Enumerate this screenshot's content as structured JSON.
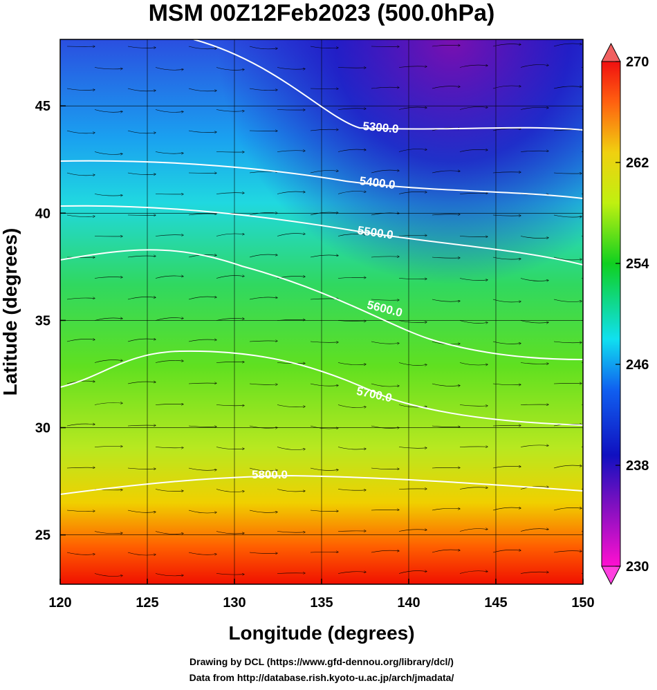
{
  "chart_data": {
    "type": "map",
    "title": "MSM 00Z12Feb2023 (500.0hPa)",
    "x_label": "Longitude (degrees)",
    "y_label": "Latitude  (degrees)",
    "xlim": [
      120,
      150
    ],
    "ylim": [
      22.7,
      48.1
    ],
    "xticks": [
      120,
      125,
      130,
      135,
      140,
      145,
      150
    ],
    "yticks": [
      25,
      30,
      35,
      40,
      45
    ],
    "grid": true,
    "colorbar": {
      "lim": [
        230,
        270
      ],
      "ticks": [
        230,
        238,
        246,
        254,
        262,
        270
      ]
    },
    "contours": [
      {
        "value": 5300,
        "label": "5300.0"
      },
      {
        "value": 5400,
        "label": "5400.0"
      },
      {
        "value": 5500,
        "label": "5500.0"
      },
      {
        "value": 5600,
        "label": "5600.0"
      },
      {
        "value": 5700,
        "label": "5700.0"
      },
      {
        "value": 5800,
        "label": "5800.0"
      }
    ],
    "footer": [
      "Drawing by DCL (https://www.gfd-dennou.org/library/dcl/)",
      "Data from http://database.rish.kyoto-u.ac.jp/arch/jmadata/"
    ]
  }
}
